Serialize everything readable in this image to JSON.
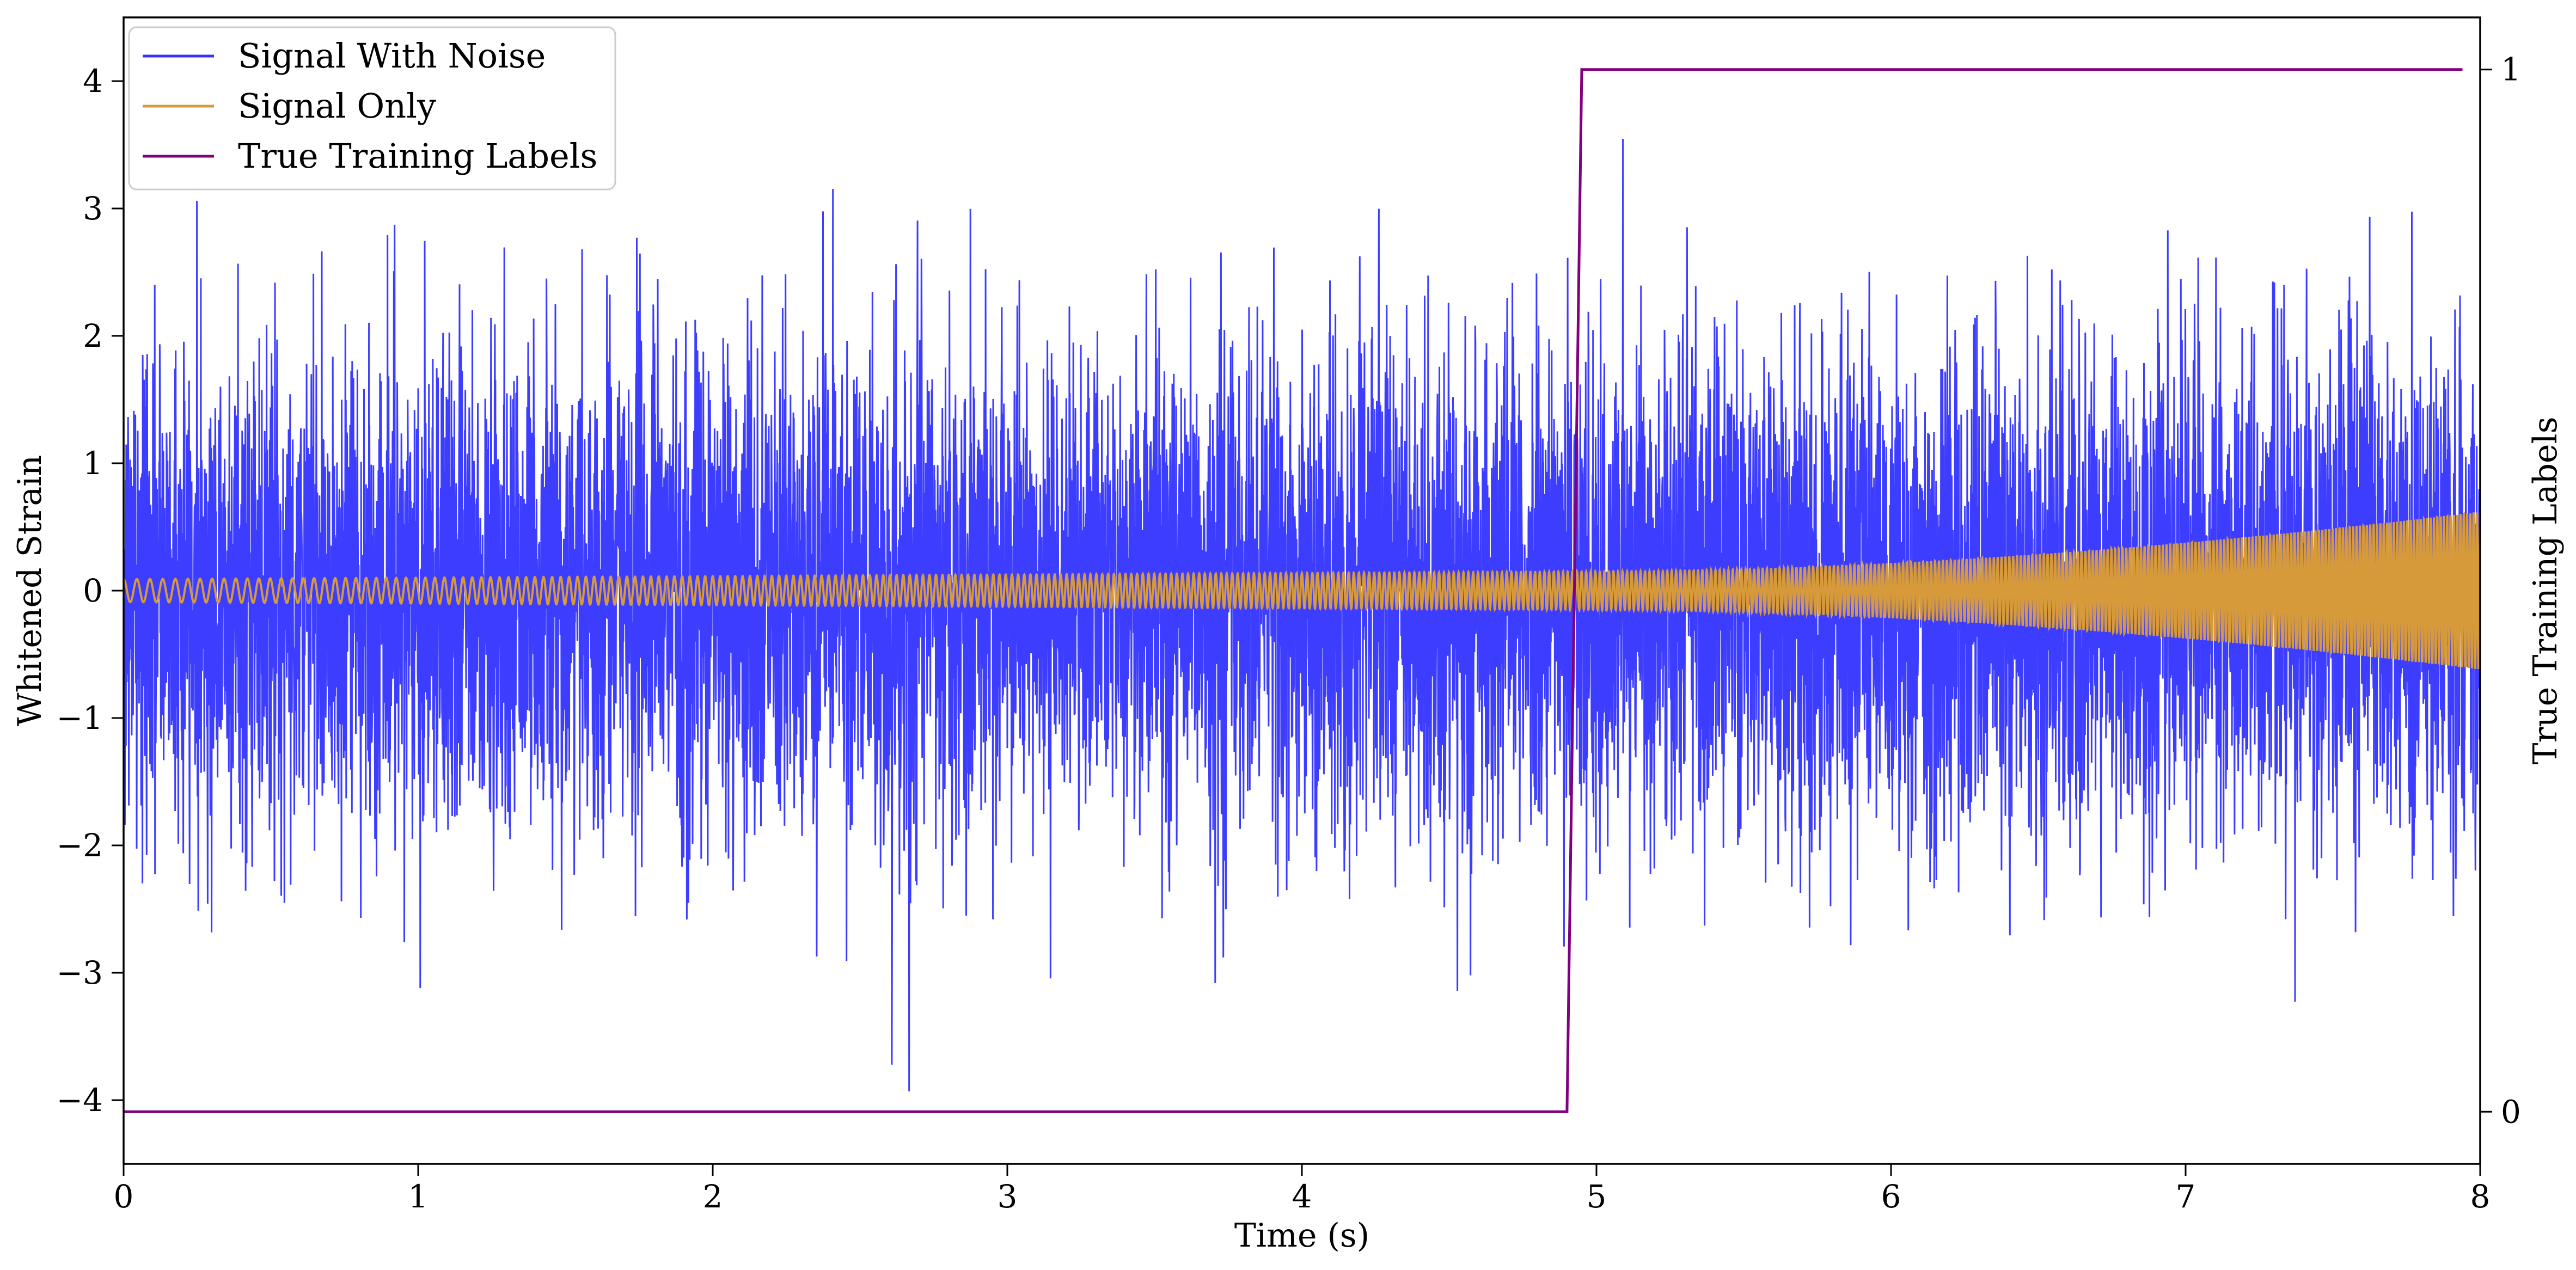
{
  "chart_data": {
    "type": "line",
    "title": "",
    "xlabel": "Time (s)",
    "ylabel": "Whitened Strain",
    "y2label": "True Training Labels",
    "xlim": [
      0,
      8
    ],
    "ylim": [
      -4.5,
      4.5
    ],
    "y2lim": [
      -0.05,
      1.05
    ],
    "x_ticks": [
      0,
      1,
      2,
      3,
      4,
      5,
      6,
      7,
      8
    ],
    "x_tick_labels": [
      "0",
      "1",
      "2",
      "3",
      "4",
      "5",
      "6",
      "7",
      "8"
    ],
    "y_ticks": [
      -4,
      -3,
      -2,
      -1,
      0,
      1,
      2,
      3,
      4
    ],
    "y_tick_labels": [
      "−4",
      "−3",
      "−2",
      "−1",
      "0",
      "1",
      "2",
      "3",
      "4"
    ],
    "y2_ticks": [
      0,
      1
    ],
    "y2_tick_labels": [
      "0",
      "1"
    ],
    "grid": false,
    "legend_position": "top-left",
    "series": [
      {
        "name": "Signal With Noise",
        "color": "#3333ff",
        "axis": "left",
        "description_of_shape": "dense noise",
        "approx_std": 0.95,
        "approx_peak_range": [
          -4.0,
          3.8
        ]
      },
      {
        "name": "Signal Only",
        "color": "#d79a3a",
        "axis": "left",
        "chirp": {
          "amplitude_start": 0.09,
          "amplitude_at_5s": 0.15,
          "amplitude_end": 0.62,
          "cycles_per_second_start": 22,
          "cycles_per_second_end": 90
        }
      },
      {
        "name": "True Training Labels",
        "color": "#800080",
        "axis": "right",
        "x": [
          0,
          4.9,
          4.95,
          7.94
        ],
        "y": [
          0,
          0,
          1,
          1
        ]
      }
    ]
  }
}
